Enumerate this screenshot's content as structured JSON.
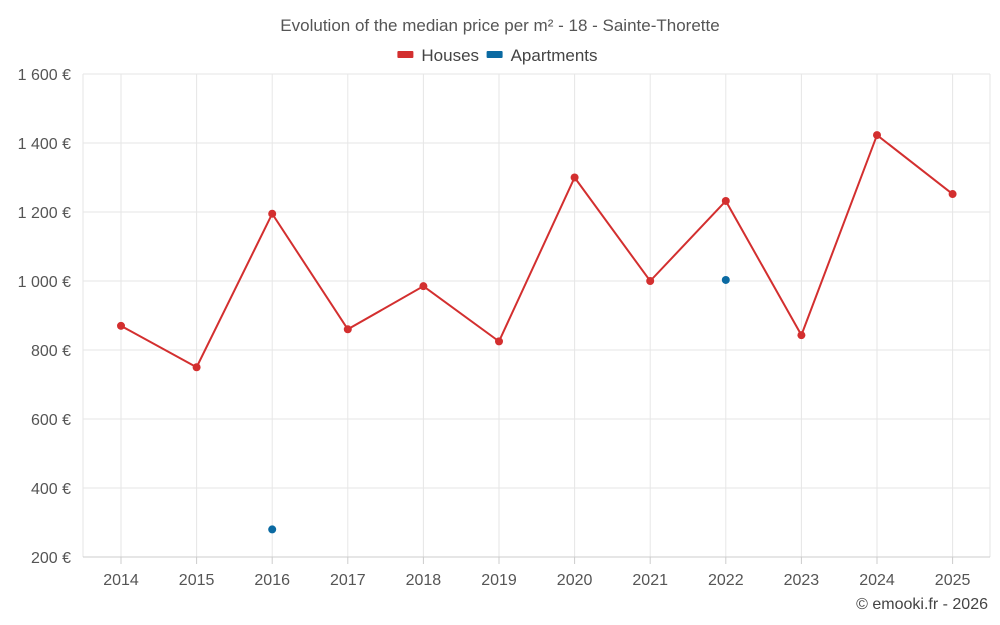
{
  "chart_data": {
    "type": "line",
    "title": "Evolution of the median price per m² - 18 - Sainte-Thorette",
    "categories": [
      "2014",
      "2015",
      "2016",
      "2017",
      "2018",
      "2019",
      "2020",
      "2021",
      "2022",
      "2023",
      "2024",
      "2025"
    ],
    "series": [
      {
        "name": "Houses",
        "color": "#d32f2f",
        "style": "line-with-markers",
        "values": [
          870,
          750,
          1195,
          860,
          985,
          825,
          1300,
          1000,
          1232,
          843,
          1423,
          1252
        ]
      },
      {
        "name": "Apartments",
        "color": "#0b6aa2",
        "style": "markers",
        "values": [
          null,
          null,
          280,
          null,
          null,
          null,
          null,
          null,
          1003,
          null,
          null,
          null
        ]
      }
    ],
    "ylim": [
      200,
      1600
    ],
    "yticks": [
      200,
      400,
      600,
      800,
      1000,
      1200,
      1400,
      1600
    ],
    "ytick_labels": [
      "200 €",
      "400 €",
      "600 €",
      "800 €",
      "1 000 €",
      "1 200 €",
      "1 400 €",
      "1 600 €"
    ],
    "xlabel": "",
    "ylabel": "",
    "grid": true,
    "legend_position": "top-center"
  },
  "credit": "© emooki.fr - 2026"
}
